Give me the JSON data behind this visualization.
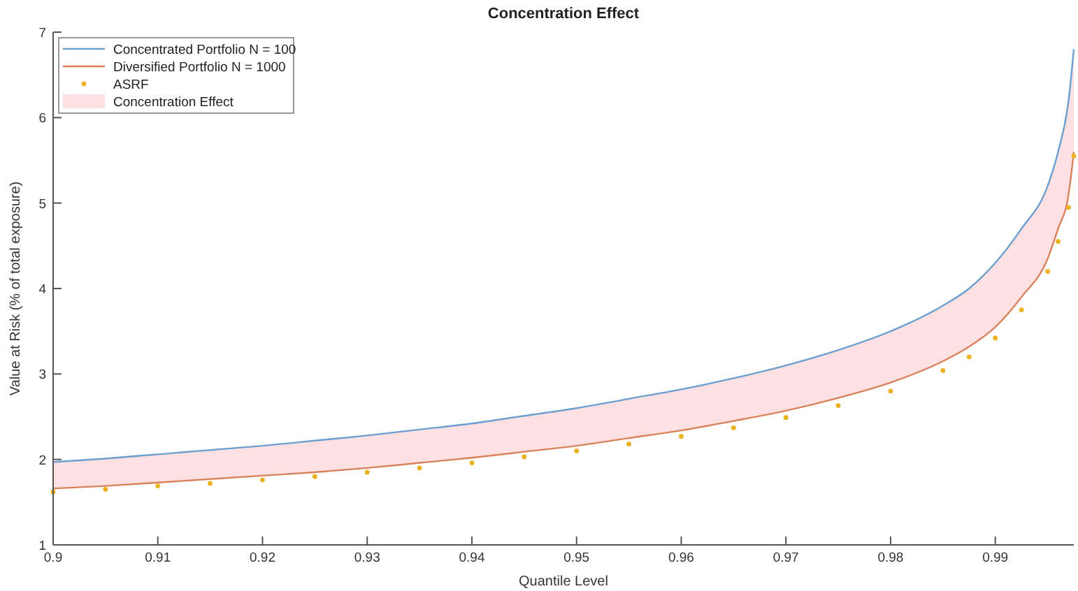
{
  "chart_data": {
    "type": "line",
    "title": "Concentration Effect",
    "xlabel": "Quantile Level",
    "ylabel": "Value at Risk (% of total exposure)",
    "x": [
      0.9,
      0.905,
      0.91,
      0.915,
      0.92,
      0.925,
      0.93,
      0.935,
      0.94,
      0.945,
      0.95,
      0.955,
      0.96,
      0.965,
      0.97,
      0.975,
      0.98,
      0.985,
      0.9875,
      0.99,
      0.9925,
      0.995,
      0.996,
      0.997,
      0.9975
    ],
    "series": [
      {
        "name": "Concentrated Portfolio N = 100",
        "color": "#6a9fcf",
        "values": [
          1.97,
          2.01,
          2.06,
          2.11,
          2.16,
          2.22,
          2.28,
          2.35,
          2.42,
          2.51,
          2.6,
          2.71,
          2.82,
          2.95,
          3.1,
          3.28,
          3.5,
          3.8,
          4.0,
          4.3,
          4.7,
          5.2,
          5.6,
          6.2,
          6.8
        ]
      },
      {
        "name": "Diversified Portfolio N = 1000",
        "color": "#d9825b",
        "values": [
          1.66,
          1.69,
          1.73,
          1.77,
          1.81,
          1.85,
          1.9,
          1.96,
          2.02,
          2.09,
          2.16,
          2.25,
          2.34,
          2.45,
          2.57,
          2.72,
          2.9,
          3.15,
          3.32,
          3.55,
          3.9,
          4.35,
          4.7,
          5.1,
          5.6
        ]
      },
      {
        "name": "ASRF",
        "type": "scatter",
        "color": "#edb120",
        "values": [
          1.62,
          1.65,
          1.69,
          1.72,
          1.76,
          1.8,
          1.85,
          1.9,
          1.96,
          2.03,
          2.1,
          2.18,
          2.27,
          2.37,
          2.49,
          2.63,
          2.8,
          3.04,
          3.2,
          3.42,
          3.75,
          4.2,
          4.55,
          4.95,
          5.55
        ]
      },
      {
        "name": "Concentration Effect",
        "type": "area",
        "color": "#fde0e2",
        "values": [
          null,
          null,
          null,
          null,
          null,
          null,
          null,
          null,
          null,
          null,
          null,
          null,
          null,
          null,
          null,
          null,
          null,
          null,
          null,
          null,
          null,
          null,
          null,
          null,
          null
        ],
        "upper": [
          1.97,
          2.01,
          2.06,
          2.11,
          2.16,
          2.22,
          2.28,
          2.35,
          2.42,
          2.51,
          2.6,
          2.71,
          2.82,
          2.95,
          3.1,
          3.28,
          3.5,
          3.8,
          4.0,
          4.3,
          4.7,
          5.2,
          5.6,
          6.2,
          6.8
        ],
        "lower": [
          1.66,
          1.69,
          1.73,
          1.77,
          1.81,
          1.85,
          1.9,
          1.96,
          2.02,
          2.09,
          2.16,
          2.25,
          2.34,
          2.45,
          2.57,
          2.72,
          2.9,
          3.15,
          3.32,
          3.55,
          3.9,
          4.35,
          4.7,
          5.1,
          5.6
        ]
      }
    ],
    "xlim": [
      0.9,
      0.9975
    ],
    "xticks": [
      0.9,
      0.91,
      0.92,
      0.93,
      0.94,
      0.95,
      0.96,
      0.97,
      0.98,
      0.99
    ],
    "ylim": [
      1,
      7
    ],
    "yticks": [
      1,
      2,
      3,
      4,
      5,
      6,
      7
    ],
    "legend": "top left",
    "grid": false
  }
}
